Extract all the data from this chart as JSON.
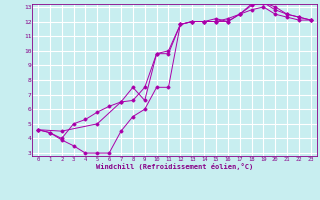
{
  "bg_color": "#c8eef0",
  "line_color": "#aa00aa",
  "grid_color": "#ffffff",
  "xlabel": "Windchill (Refroidissement éolien,°C)",
  "xlabel_color": "#880088",
  "tick_color": "#880088",
  "xlim": [
    -0.5,
    23.5
  ],
  "ylim": [
    2.8,
    13.2
  ],
  "xticks": [
    0,
    1,
    2,
    3,
    4,
    5,
    6,
    7,
    8,
    9,
    10,
    11,
    12,
    13,
    14,
    15,
    16,
    17,
    18,
    19,
    20,
    21,
    22,
    23
  ],
  "yticks": [
    3,
    4,
    5,
    6,
    7,
    8,
    9,
    10,
    11,
    12,
    13
  ],
  "line1_x": [
    0,
    1,
    2,
    3,
    4,
    5,
    6,
    7,
    8,
    9,
    10,
    11,
    12,
    13,
    14,
    15,
    16,
    17,
    18,
    19,
    20,
    21,
    22,
    23
  ],
  "line1_y": [
    4.6,
    4.4,
    3.9,
    3.5,
    3.0,
    3.0,
    3.0,
    4.5,
    5.5,
    6.0,
    7.5,
    7.5,
    11.8,
    12.0,
    12.0,
    12.0,
    12.2,
    12.5,
    12.8,
    13.0,
    12.5,
    12.3,
    12.1,
    12.1
  ],
  "line2_x": [
    0,
    1,
    2,
    3,
    4,
    5,
    6,
    7,
    8,
    9,
    10,
    11,
    12,
    13,
    14,
    15,
    16,
    17,
    18,
    19,
    20,
    21,
    22,
    23
  ],
  "line2_y": [
    4.6,
    4.4,
    4.0,
    5.0,
    5.3,
    5.8,
    6.2,
    6.5,
    6.6,
    7.5,
    9.8,
    9.8,
    11.8,
    12.0,
    12.0,
    12.2,
    12.0,
    12.5,
    13.1,
    13.3,
    13.0,
    12.5,
    12.3,
    12.1
  ],
  "line3_x": [
    0,
    2,
    5,
    7,
    8,
    9,
    10,
    11,
    12,
    13,
    14,
    15,
    16,
    17,
    18,
    19,
    20,
    21,
    22,
    23
  ],
  "line3_y": [
    4.6,
    4.5,
    5.0,
    6.5,
    7.5,
    6.6,
    9.8,
    10.0,
    11.8,
    12.0,
    12.0,
    12.0,
    12.0,
    12.5,
    13.2,
    13.3,
    12.8,
    12.5,
    12.3,
    12.1
  ]
}
